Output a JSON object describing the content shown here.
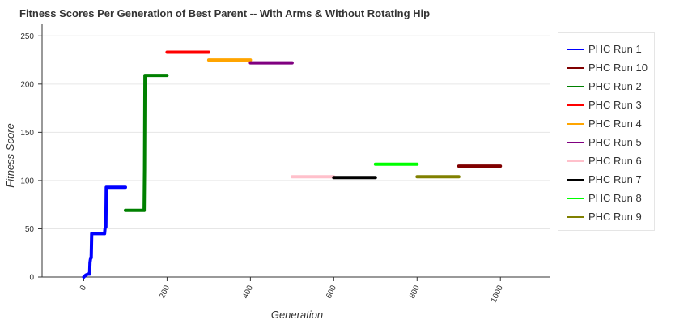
{
  "chart_data": {
    "type": "line",
    "title": "Fitness Scores Per Generation of Best Parent -- With Arms & Without Rotating Hip",
    "xlabel": "Generation",
    "ylabel": "Fitness Score",
    "xlim": [
      -100,
      1120
    ],
    "ylim": [
      0,
      262
    ],
    "x_ticks": [
      0,
      200,
      400,
      600,
      800,
      1000
    ],
    "y_ticks": [
      0,
      50,
      100,
      150,
      200,
      250
    ],
    "grid": true,
    "legend_position": "right",
    "series": [
      {
        "name": "PHC Run 1",
        "color": "#0000ff",
        "points": [
          [
            0,
            0
          ],
          [
            5,
            2
          ],
          [
            10,
            3
          ],
          [
            14,
            3
          ],
          [
            15,
            15
          ],
          [
            16,
            18
          ],
          [
            17,
            20
          ],
          [
            18,
            20
          ],
          [
            19,
            45
          ],
          [
            50,
            45
          ],
          [
            51,
            50
          ],
          [
            52,
            52
          ],
          [
            53,
            52
          ],
          [
            54,
            93
          ],
          [
            100,
            93
          ]
        ]
      },
      {
        "name": "PHC Run 10",
        "color": "#800000",
        "points": [
          [
            900,
            115
          ],
          [
            1000,
            115
          ]
        ]
      },
      {
        "name": "PHC Run 2",
        "color": "#008000",
        "points": [
          [
            100,
            69
          ],
          [
            145,
            69
          ],
          [
            146,
            112
          ],
          [
            147,
            209
          ],
          [
            200,
            209
          ]
        ]
      },
      {
        "name": "PHC Run 3",
        "color": "#ff0000",
        "points": [
          [
            200,
            233
          ],
          [
            300,
            233
          ]
        ]
      },
      {
        "name": "PHC Run 4",
        "color": "#ffa500",
        "points": [
          [
            300,
            225
          ],
          [
            400,
            225
          ]
        ]
      },
      {
        "name": "PHC Run 5",
        "color": "#800080",
        "points": [
          [
            400,
            222
          ],
          [
            500,
            222
          ]
        ]
      },
      {
        "name": "PHC Run 6",
        "color": "#ffc0cb",
        "points": [
          [
            500,
            104
          ],
          [
            600,
            104
          ]
        ]
      },
      {
        "name": "PHC Run 7",
        "color": "#000000",
        "points": [
          [
            600,
            103
          ],
          [
            700,
            103
          ]
        ]
      },
      {
        "name": "PHC Run 8",
        "color": "#00ff00",
        "points": [
          [
            700,
            117
          ],
          [
            800,
            117
          ]
        ]
      },
      {
        "name": "PHC Run 9",
        "color": "#808000",
        "points": [
          [
            800,
            104
          ],
          [
            900,
            104
          ]
        ]
      }
    ]
  }
}
